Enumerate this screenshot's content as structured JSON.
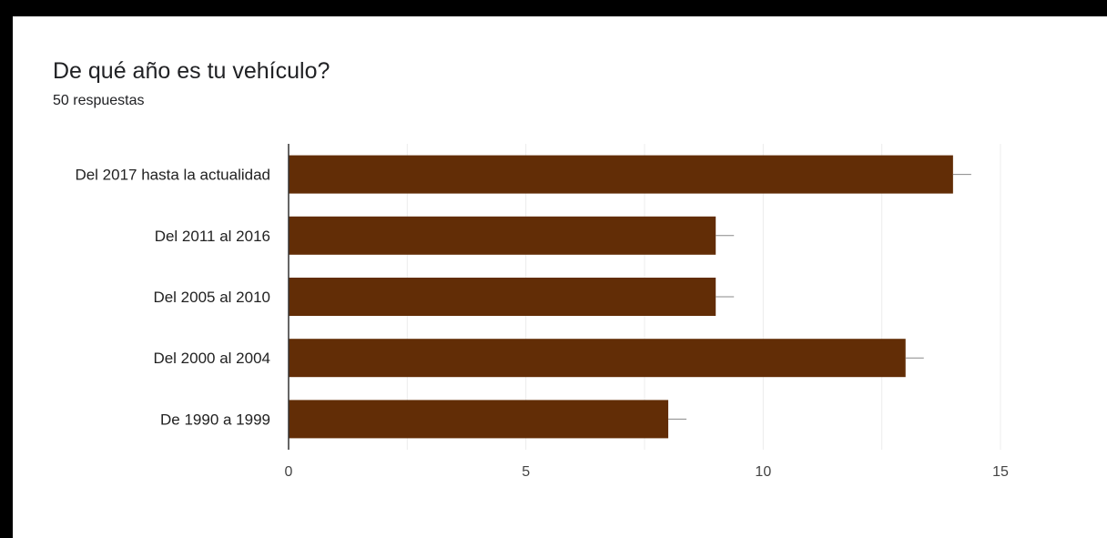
{
  "header": {
    "title": "De qué año es tu vehículo?",
    "subtitle": "50 respuestas"
  },
  "colors": {
    "bar": "#622d06",
    "gridline": "#ececec",
    "axis": "#333333",
    "whisker": "#888888"
  },
  "chart_data": {
    "type": "bar",
    "orientation": "horizontal",
    "categories": [
      "Del 2017 hasta la actualidad",
      "Del 2011 al 2016",
      "Del 2005 al 2010",
      "Del 2000 al 2004",
      "De 1990 a 1999"
    ],
    "values": [
      14,
      9,
      9,
      13,
      8
    ],
    "xlim": [
      0,
      15
    ],
    "xticks": [
      0,
      5,
      10,
      15
    ],
    "grid": true
  }
}
